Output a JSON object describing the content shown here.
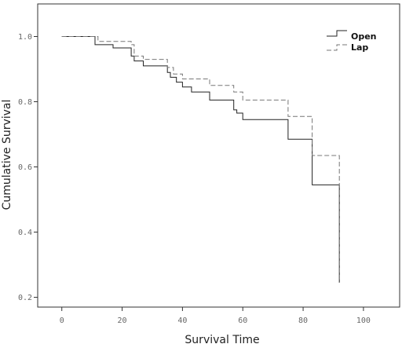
{
  "chart_data": {
    "type": "line",
    "subtype": "kaplan-meier step",
    "title": "",
    "xlabel": "Survival Time",
    "ylabel": "Cumulative Survival",
    "xlim": [
      -8,
      112
    ],
    "ylim": [
      0.17,
      1.1
    ],
    "xticks": [
      0,
      20,
      40,
      60,
      80,
      100
    ],
    "yticks": [
      0.2,
      0.4,
      0.6,
      0.8,
      1.0
    ],
    "ytick_labels": [
      "0.2",
      "0.4",
      "0.6",
      "0.8",
      "1.0"
    ],
    "grid": false,
    "legend_position": "top-right",
    "series": [
      {
        "name": "Open",
        "color": "#222222",
        "dash": "solid",
        "x": [
          0,
          10,
          11,
          17,
          23,
          24,
          27,
          35,
          36,
          38,
          40,
          43,
          49,
          57,
          58,
          60,
          75,
          83,
          92,
          92
        ],
        "y": [
          1.0,
          1.0,
          0.975,
          0.965,
          0.94,
          0.925,
          0.91,
          0.89,
          0.875,
          0.86,
          0.845,
          0.83,
          0.805,
          0.775,
          0.765,
          0.745,
          0.685,
          0.545,
          0.545,
          0.245
        ]
      },
      {
        "name": "Lap",
        "color": "#777777",
        "dash": "dashed",
        "x": [
          0,
          11,
          12,
          23,
          24,
          27,
          35,
          37,
          40,
          49,
          57,
          60,
          75,
          83,
          92,
          92
        ],
        "y": [
          1.0,
          1.0,
          0.985,
          0.975,
          0.94,
          0.93,
          0.905,
          0.885,
          0.87,
          0.85,
          0.83,
          0.805,
          0.755,
          0.635,
          0.635,
          0.245
        ]
      }
    ]
  }
}
